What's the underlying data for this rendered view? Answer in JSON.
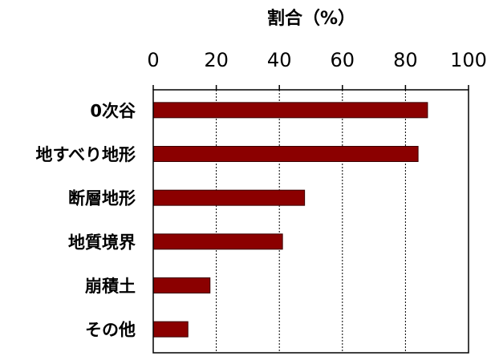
{
  "chart_data": {
    "type": "bar",
    "orientation": "horizontal",
    "title": "",
    "xlabel": "割合（%）",
    "ylabel": "",
    "x_axis_position": "top",
    "xlim": [
      0,
      100
    ],
    "xticks": [
      0,
      20,
      40,
      60,
      80,
      100
    ],
    "tick_labels": [
      "0",
      "20",
      "40",
      "60",
      "80",
      "100"
    ],
    "grid": "vertical-dotted",
    "legend": "none",
    "bar_color": "#8b0000",
    "categories": [
      "0次谷",
      "地すべり地形",
      "断層地形",
      "地質境界",
      "崩積土",
      "その他"
    ],
    "values": [
      87,
      84,
      48,
      41,
      18,
      11
    ]
  }
}
